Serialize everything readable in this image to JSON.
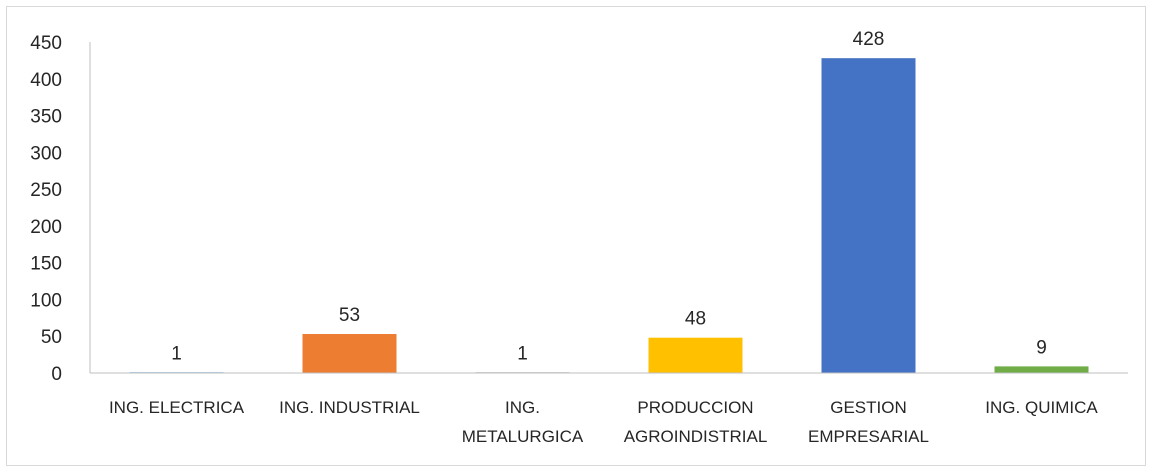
{
  "chart_data": {
    "type": "bar",
    "title": "",
    "xlabel": "",
    "ylabel": "",
    "ylim": [
      0,
      450
    ],
    "yticks": [
      0,
      50,
      100,
      150,
      200,
      250,
      300,
      350,
      400,
      450
    ],
    "grid": false,
    "legend": "none",
    "categories": [
      [
        "ING. ELECTRICA"
      ],
      [
        "ING. INDUSTRIAL"
      ],
      [
        "ING.",
        "METALURGICA"
      ],
      [
        "PRODUCCION",
        "AGROINDISTRIAL"
      ],
      [
        "GESTION",
        "EMPRESARIAL"
      ],
      [
        "ING. QUIMICA"
      ]
    ],
    "values": [
      1,
      53,
      1,
      48,
      428,
      9
    ],
    "colors": [
      "#5b9bd5",
      "#ed7d31",
      "#a5a5a5",
      "#ffc000",
      "#4472c4",
      "#70ad47"
    ],
    "data_labels": [
      "1",
      "53",
      "1",
      "48",
      "428",
      "9"
    ]
  }
}
